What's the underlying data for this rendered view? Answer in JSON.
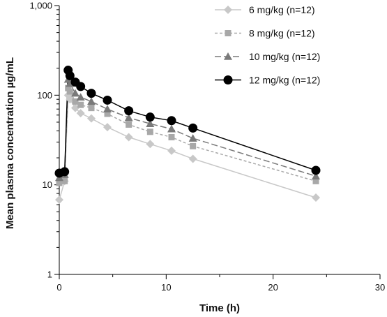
{
  "chart_data": {
    "type": "line",
    "xlabel": "Time (h)",
    "ylabel": "Mean plasma concentration µg/mL",
    "xlim": [
      0,
      30
    ],
    "ylim": [
      1,
      1000
    ],
    "yscale": "log",
    "xticks": [
      0,
      10,
      20,
      30
    ],
    "xtick_labels": [
      "0",
      "10",
      "20",
      "30"
    ],
    "yticks": [
      1,
      10,
      100,
      1000
    ],
    "ytick_labels": [
      "1",
      "10",
      "100",
      "1,000"
    ],
    "grid": false,
    "legend_position": "top-right",
    "series": [
      {
        "name": "6 mg/kg (n=12)",
        "color": "#c8c8c8",
        "marker": "diamond",
        "dash": "solid",
        "x": [
          0,
          0.5,
          0.83,
          1,
          1.5,
          2,
          3,
          4.5,
          6.5,
          8.5,
          10.5,
          12.5,
          24
        ],
        "y": [
          6.8,
          11,
          100,
          90,
          72,
          63,
          55,
          44,
          34,
          28.5,
          24,
          19.5,
          7.2
        ]
      },
      {
        "name": "8 mg/kg (n=12)",
        "color": "#a8a8a8",
        "marker": "square",
        "dash": "dashed",
        "x": [
          0,
          0.5,
          0.83,
          1,
          1.5,
          2,
          3,
          4.5,
          6.5,
          8.5,
          10.5,
          12.5,
          24
        ],
        "y": [
          10.5,
          11,
          120,
          110,
          85,
          78,
          72,
          62,
          47,
          39,
          34,
          27,
          11
        ]
      },
      {
        "name": "10 mg/kg (n=12)",
        "color": "#7a7a7a",
        "marker": "triangle",
        "dash": "long-dashed",
        "x": [
          0,
          0.5,
          0.83,
          1,
          1.5,
          2,
          3,
          4.5,
          6.5,
          8.5,
          10.5,
          12.5,
          24
        ],
        "y": [
          12,
          13,
          150,
          135,
          105,
          95,
          85,
          70,
          56,
          48,
          42,
          33,
          12.5
        ]
      },
      {
        "name": "12 mg/kg (n=12)",
        "color": "#000000",
        "marker": "circle",
        "dash": "solid",
        "x": [
          0,
          0.5,
          0.83,
          1,
          1.5,
          2,
          3,
          4.5,
          6.5,
          8.5,
          10.5,
          12.5,
          24
        ],
        "y": [
          13.5,
          14,
          190,
          165,
          140,
          125,
          105,
          88,
          67,
          57,
          52,
          43,
          14.5
        ]
      }
    ]
  }
}
